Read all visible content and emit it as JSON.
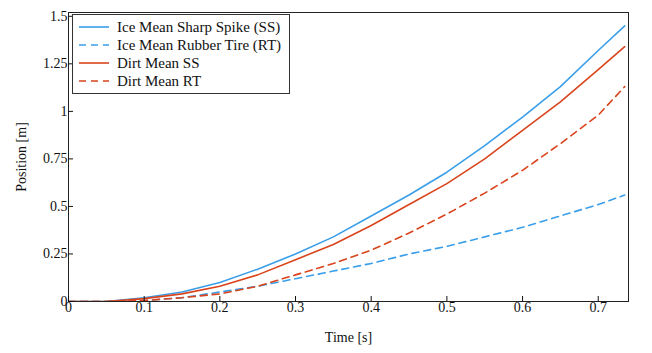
{
  "chart_data": {
    "type": "line",
    "xlabel": "Time [s]",
    "ylabel": "Position [m]",
    "x": [
      0,
      0.05,
      0.1,
      0.15,
      0.2,
      0.25,
      0.3,
      0.35,
      0.4,
      0.45,
      0.5,
      0.55,
      0.6,
      0.65,
      0.7,
      0.735
    ],
    "series": [
      {
        "name": "Ice Mean Sharp Spike (SS)",
        "color": "#3a9ee8",
        "line_style": "solid",
        "values": [
          0,
          0,
          0.02,
          0.05,
          0.1,
          0.17,
          0.25,
          0.34,
          0.45,
          0.56,
          0.68,
          0.82,
          0.97,
          1.13,
          1.32,
          1.45
        ]
      },
      {
        "name": "Ice Mean Rubber Tire (RT)",
        "color": "#3a9ee8",
        "line_style": "dashed",
        "values": [
          0,
          0,
          0.005,
          0.02,
          0.05,
          0.08,
          0.12,
          0.16,
          0.2,
          0.25,
          0.29,
          0.34,
          0.39,
          0.45,
          0.51,
          0.56
        ]
      },
      {
        "name": "Dirt Mean SS",
        "color": "#d9441c",
        "line_style": "solid",
        "values": [
          0,
          0,
          0.015,
          0.04,
          0.08,
          0.14,
          0.22,
          0.3,
          0.4,
          0.51,
          0.62,
          0.75,
          0.9,
          1.05,
          1.22,
          1.34
        ]
      },
      {
        "name": "Dirt Mean RT",
        "color": "#d9441c",
        "line_style": "dashed",
        "values": [
          0,
          0,
          0.005,
          0.02,
          0.04,
          0.08,
          0.14,
          0.2,
          0.27,
          0.36,
          0.46,
          0.57,
          0.69,
          0.83,
          0.98,
          1.13
        ]
      }
    ],
    "xlim": [
      0,
      0.74
    ],
    "ylim": [
      0,
      1.52
    ],
    "xticks": [
      0,
      0.1,
      0.2,
      0.3,
      0.4,
      0.5,
      0.6,
      0.7
    ],
    "yticks": [
      0,
      0.25,
      0.5,
      0.75,
      1,
      1.25,
      1.5
    ],
    "grid": false,
    "legend": "upper left"
  }
}
